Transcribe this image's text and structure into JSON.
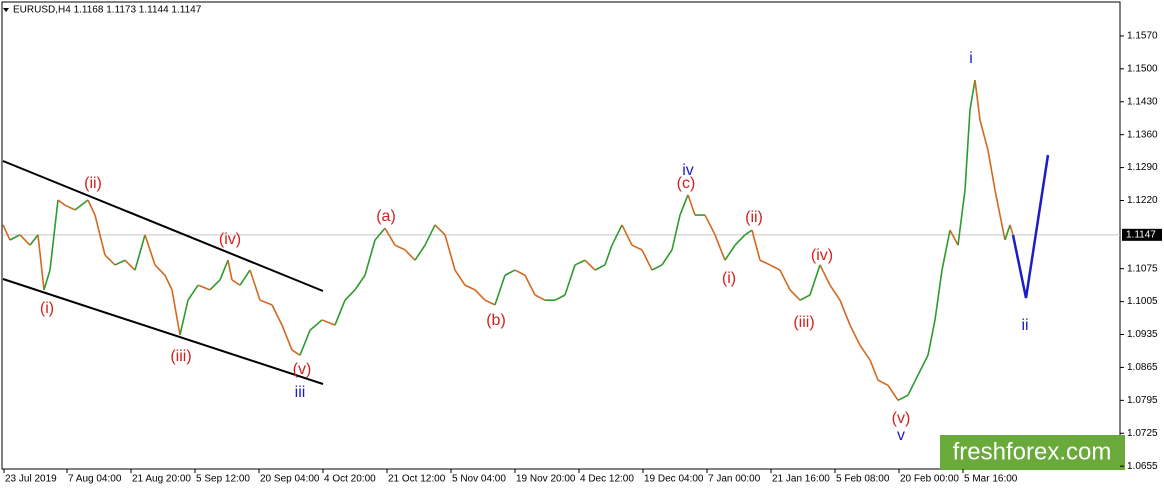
{
  "chart_data": {
    "type": "line",
    "title": "EURUSD,H4  1.1168 1.1173 1.1144 1.1147",
    "up_color": "#2e9a2e",
    "down_color": "#d2691e",
    "x": [
      0,
      7,
      17,
      27,
      35,
      41,
      47,
      55,
      62,
      72,
      85,
      92,
      102,
      112,
      122,
      132,
      142,
      152,
      162,
      169,
      177,
      185,
      195,
      207,
      217,
      225,
      229,
      237,
      247,
      257,
      269,
      279,
      289,
      297,
      307,
      319,
      332,
      342,
      352,
      362,
      372,
      382,
      392,
      402,
      412,
      422,
      432,
      442,
      452,
      462,
      472,
      482,
      492,
      502,
      512,
      522,
      532,
      542,
      552,
      562,
      572,
      582,
      592,
      602,
      609,
      619,
      629,
      639,
      649,
      659,
      669,
      677,
      685,
      692,
      702,
      712,
      722,
      732,
      742,
      749,
      757,
      767,
      777,
      787,
      797,
      807,
      817,
      827,
      837,
      847,
      857,
      867,
      875,
      885,
      895,
      905,
      915,
      925,
      932,
      939,
      947,
      955,
      962,
      967,
      972,
      977,
      985,
      992,
      997,
      1002,
      1007,
      1010
    ],
    "values": [
      1.1168,
      1.1136,
      1.1147,
      1.1125,
      1.1147,
      1.103,
      1.1072,
      1.1221,
      1.121,
      1.12,
      1.1221,
      1.1189,
      1.1104,
      1.1083,
      1.1093,
      1.1072,
      1.1147,
      1.1083,
      1.1061,
      1.103,
      1.0934,
      1.1008,
      1.104,
      1.103,
      1.1051,
      1.1093,
      1.1051,
      1.104,
      1.1072,
      1.1008,
      1.0998,
      1.0955,
      1.0902,
      1.0891,
      1.0944,
      1.0966,
      1.0955,
      1.1008,
      1.103,
      1.1061,
      1.1136,
      1.1161,
      1.1125,
      1.1115,
      1.1093,
      1.1125,
      1.1168,
      1.1147,
      1.1072,
      1.104,
      1.103,
      1.1008,
      1.0998,
      1.1061,
      1.1072,
      1.1061,
      1.1019,
      1.1008,
      1.1008,
      1.1019,
      1.1083,
      1.1093,
      1.1072,
      1.1083,
      1.1125,
      1.1168,
      1.1125,
      1.1115,
      1.1072,
      1.1083,
      1.1115,
      1.1189,
      1.1232,
      1.1189,
      1.1189,
      1.1147,
      1.1093,
      1.1125,
      1.1147,
      1.1157,
      1.1093,
      1.1083,
      1.1072,
      1.103,
      1.1008,
      1.1019,
      1.1083,
      1.104,
      1.1008,
      1.0955,
      1.0912,
      1.0881,
      1.0838,
      1.0827,
      1.0795,
      1.0806,
      1.0849,
      1.0891,
      1.0966,
      1.1072,
      1.1157,
      1.1125,
      1.1242,
      1.1413,
      1.1476,
      1.1391,
      1.1327,
      1.1242,
      1.1189,
      1.1136,
      1.1168,
      1.1147
    ],
    "xlim": [
      0,
      1117
    ],
    "xticks": [
      {
        "value": 1,
        "label": "23 Jul 2019"
      },
      {
        "value": 64,
        "label": "7 Aug 04:00"
      },
      {
        "value": 128,
        "label": "21 Aug 20:00"
      },
      {
        "value": 192,
        "label": "5 Sep 12:00"
      },
      {
        "value": 256,
        "label": "20 Sep 04:00"
      },
      {
        "value": 320,
        "label": "4 Oct 20:00"
      },
      {
        "value": 384,
        "label": "21 Oct 12:00"
      },
      {
        "value": 448,
        "label": "5 Nov 04:00"
      },
      {
        "value": 512,
        "label": "19 Nov 20:00"
      },
      {
        "value": 576,
        "label": "4 Dec 12:00"
      },
      {
        "value": 640,
        "label": "19 Dec 04:00"
      },
      {
        "value": 704,
        "label": "7 Jan 00:00"
      },
      {
        "value": 768,
        "label": "21 Jan 16:00"
      },
      {
        "value": 832,
        "label": "5 Feb 08:00"
      },
      {
        "value": 896,
        "label": "20 Feb 00:00"
      },
      {
        "value": 960,
        "label": "5 Mar 16:00"
      }
    ],
    "ylim": [
      1.0649,
      1.164
    ],
    "yticks": [
      1.0655,
      1.0725,
      1.0795,
      1.0865,
      1.0935,
      1.1005,
      1.1075,
      {
        "value": 1.122,
        "label": "1.1220"
      },
      {
        "value": 1.129,
        "label": "1.1290"
      },
      {
        "value": 1.136,
        "label": "1.1360"
      },
      {
        "value": 1.143,
        "label": "1.1430"
      },
      {
        "value": 1.15,
        "label": "1.1500"
      },
      {
        "value": 1.157,
        "label": "1.1570"
      }
    ],
    "last_price": 1.1147,
    "annotations": [
      {
        "text": "(i)",
        "color": "#d42020"
      },
      {
        "text": "(ii)",
        "color": "#d42020"
      },
      {
        "text": "(iii)",
        "color": "#d42020"
      },
      {
        "text": "(iv)",
        "color": "#d42020"
      },
      {
        "text": "(v)",
        "color": "#d42020"
      },
      {
        "text": "iii",
        "color": "#1c1cc8"
      },
      {
        "text": "(a)",
        "color": "#d42020"
      },
      {
        "text": "(b)",
        "color": "#d42020"
      },
      {
        "text": "(c)",
        "color": "#d42020"
      },
      {
        "text": "iv",
        "color": "#1c1cc8"
      },
      {
        "text": "(i)",
        "color": "#d42020"
      },
      {
        "text": "(ii)",
        "color": "#d42020"
      },
      {
        "text": "(iii)",
        "color": "#d42020"
      },
      {
        "text": "(iv)",
        "color": "#d42020"
      },
      {
        "text": "(v)",
        "color": "#d42020"
      },
      {
        "text": "v",
        "color": "#1c1cc8"
      },
      {
        "text": "i",
        "color": "#1c1cc8"
      },
      {
        "text": "ii",
        "color": "#1c1cc8"
      }
    ],
    "watermark": "freshforex.com"
  }
}
